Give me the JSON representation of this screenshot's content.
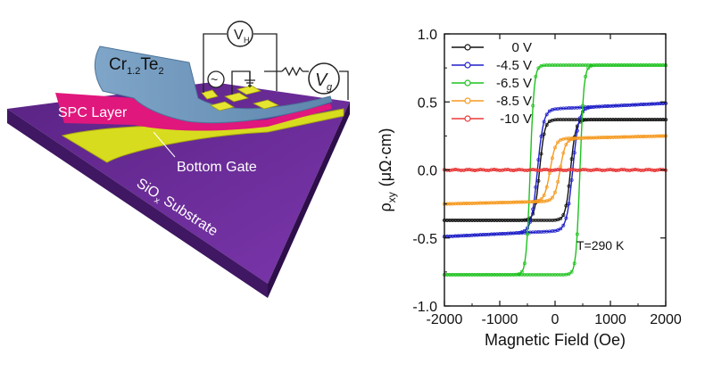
{
  "figure": {
    "device_labels": {
      "crte_base": "Cr",
      "crte_sub1": "1.2",
      "crte_mid": "Te",
      "crte_sub2": "2",
      "spc_layer": "SPC Layer",
      "bottom_gate": "Bottom Gate",
      "substrate_pre": "SiO",
      "substrate_sub": "x",
      "substrate_post": " Substrate",
      "vh_base": "V",
      "vh_sub": "H",
      "vg_base": "V",
      "vg_sub": "g",
      "ac_symbol": "~"
    },
    "colors": {
      "substrate": "#6a2c98",
      "crte_film": "#7a9ec0",
      "spc_layer": "#e0177c",
      "bottom_gate": "#d8dc1e",
      "electrode": "#e6e632"
    }
  },
  "chart_data": {
    "type": "line",
    "xlabel": "Magnetic Field (Oe)",
    "ylabel_rho": "ρ",
    "ylabel_sub": "xy",
    "ylabel_unit": "(μΩ·cm)",
    "xlim": [
      -2000,
      2000
    ],
    "ylim": [
      -1.0,
      1.0
    ],
    "xticks": [
      -2000,
      -1000,
      0,
      1000,
      2000
    ],
    "xtick_labels": [
      "-2000",
      "-1000",
      "0",
      "1000",
      "2000"
    ],
    "yticks": [
      -1.0,
      -0.5,
      0.0,
      0.5,
      1.0
    ],
    "ytick_labels": [
      "-1.0",
      "-0.5",
      "0.0",
      "0.5",
      "1.0"
    ],
    "annotation": "T=290 K",
    "legend_position": "top-left",
    "series": [
      {
        "name": "0 V",
        "color": "#111111",
        "sat": 0.37,
        "coercive": 280,
        "width": 90,
        "drift": 0.0
      },
      {
        "name": "-4.5 V",
        "color": "#1f1fc8",
        "sat": 0.45,
        "coercive": 320,
        "width": 110,
        "drift": 2e-05
      },
      {
        "name": "-6.5 V",
        "color": "#1ec21e",
        "sat": 0.77,
        "coercive": 450,
        "width": 70,
        "drift": 0.0
      },
      {
        "name": "-8.5 V",
        "color": "#f59a20",
        "sat": 0.23,
        "coercive": 90,
        "width": 100,
        "drift": 1e-05
      },
      {
        "name": "-10 V",
        "color": "#e83a3a",
        "sat": 0.0,
        "coercive": 0,
        "width": 100,
        "drift": 0.0
      }
    ]
  }
}
